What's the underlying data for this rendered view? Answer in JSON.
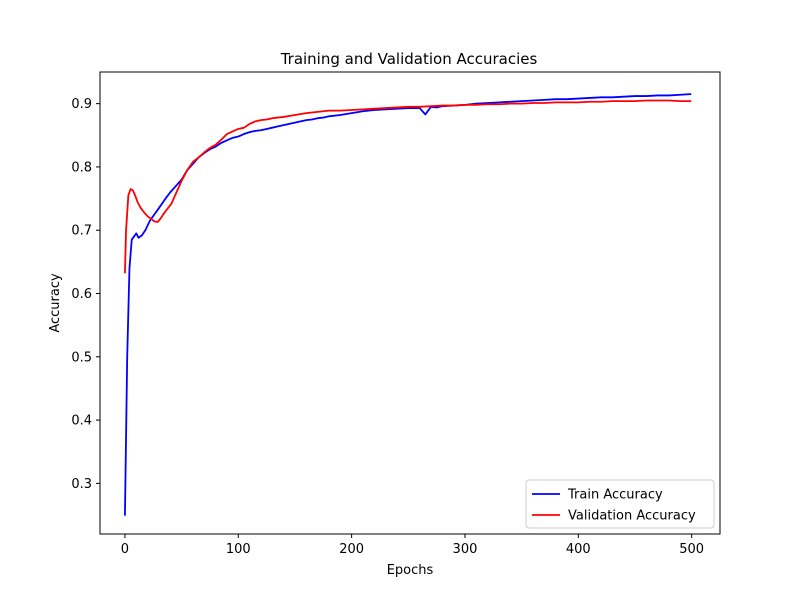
{
  "chart_data": {
    "type": "line",
    "title": "Training and Validation Accuracies",
    "xlabel": "Epochs",
    "ylabel": "Accuracy",
    "xlim": [
      -22,
      525
    ],
    "ylim": [
      0.22,
      0.95
    ],
    "xticks": [
      0,
      100,
      200,
      300,
      400,
      500
    ],
    "yticks": [
      0.3,
      0.4,
      0.5,
      0.6,
      0.7,
      0.8,
      0.9
    ],
    "legend_position": "bottom-right",
    "grid": false,
    "series": [
      {
        "name": "Train Accuracy",
        "color": "#0000ff",
        "x": [
          0,
          2,
          4,
          6,
          8,
          10,
          12,
          15,
          18,
          22,
          26,
          30,
          35,
          40,
          45,
          50,
          55,
          60,
          65,
          70,
          75,
          80,
          85,
          90,
          95,
          100,
          105,
          110,
          115,
          120,
          125,
          130,
          135,
          140,
          145,
          150,
          155,
          160,
          165,
          170,
          175,
          180,
          190,
          200,
          210,
          220,
          230,
          240,
          250,
          260,
          265,
          270,
          275,
          280,
          290,
          300,
          310,
          320,
          330,
          340,
          350,
          360,
          370,
          380,
          390,
          400,
          410,
          420,
          430,
          440,
          450,
          460,
          470,
          480,
          490,
          499
        ],
        "y": [
          0.25,
          0.5,
          0.64,
          0.685,
          0.69,
          0.695,
          0.688,
          0.692,
          0.7,
          0.715,
          0.725,
          0.735,
          0.748,
          0.76,
          0.77,
          0.78,
          0.795,
          0.805,
          0.815,
          0.822,
          0.828,
          0.832,
          0.838,
          0.842,
          0.846,
          0.848,
          0.852,
          0.855,
          0.857,
          0.858,
          0.86,
          0.862,
          0.864,
          0.866,
          0.868,
          0.87,
          0.872,
          0.874,
          0.875,
          0.877,
          0.878,
          0.88,
          0.882,
          0.885,
          0.888,
          0.89,
          0.891,
          0.892,
          0.893,
          0.893,
          0.883,
          0.895,
          0.894,
          0.896,
          0.897,
          0.898,
          0.9,
          0.901,
          0.902,
          0.903,
          0.904,
          0.905,
          0.906,
          0.907,
          0.907,
          0.908,
          0.909,
          0.91,
          0.91,
          0.911,
          0.912,
          0.912,
          0.913,
          0.913,
          0.914,
          0.915
        ]
      },
      {
        "name": "Validation Accuracy",
        "color": "#ff0000",
        "x": [
          0,
          1,
          3,
          5,
          7,
          9,
          11,
          14,
          17,
          20,
          23,
          26,
          29,
          32,
          35,
          38,
          41,
          45,
          50,
          55,
          60,
          65,
          70,
          75,
          80,
          85,
          90,
          95,
          100,
          105,
          110,
          115,
          120,
          125,
          130,
          140,
          150,
          160,
          170,
          180,
          190,
          200,
          210,
          220,
          230,
          240,
          250,
          260,
          270,
          280,
          290,
          300,
          310,
          320,
          330,
          340,
          350,
          360,
          370,
          380,
          390,
          400,
          410,
          420,
          430,
          440,
          450,
          460,
          470,
          480,
          490,
          499
        ],
        "y": [
          0.633,
          0.7,
          0.755,
          0.765,
          0.763,
          0.755,
          0.745,
          0.735,
          0.728,
          0.722,
          0.718,
          0.714,
          0.713,
          0.72,
          0.728,
          0.735,
          0.742,
          0.758,
          0.778,
          0.795,
          0.808,
          0.815,
          0.823,
          0.83,
          0.835,
          0.843,
          0.852,
          0.856,
          0.86,
          0.862,
          0.868,
          0.872,
          0.874,
          0.875,
          0.877,
          0.879,
          0.882,
          0.885,
          0.887,
          0.889,
          0.889,
          0.89,
          0.891,
          0.892,
          0.893,
          0.894,
          0.895,
          0.895,
          0.896,
          0.897,
          0.897,
          0.898,
          0.898,
          0.899,
          0.899,
          0.9,
          0.9,
          0.901,
          0.901,
          0.902,
          0.902,
          0.902,
          0.903,
          0.903,
          0.904,
          0.904,
          0.904,
          0.905,
          0.905,
          0.905,
          0.904,
          0.904
        ]
      }
    ]
  }
}
